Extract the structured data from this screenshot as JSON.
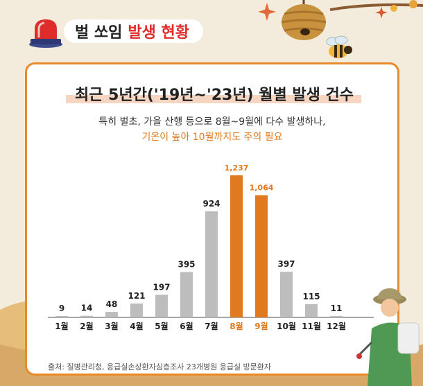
{
  "header": {
    "title": "벌 쏘임",
    "title_accent": "발생 현황"
  },
  "card": {
    "title": "최근 5년간('19년~'23년) 월별 발생 건수",
    "subtitle_line1": "특히  벌초, 가을 산행 등으로 8월~9월에 다수 발생하나,",
    "subtitle_line2": "기온이 높아 10월까지도 주의 필요",
    "source": "출처: 질병관리청, 응급실손상환자심층조사 23개병원 응급실 방문환자"
  },
  "colors": {
    "accent_orange": "#e07a1f",
    "bar_gray": "#bdbdbd",
    "header_red": "#e02b2b",
    "card_border": "#e98a2a"
  },
  "icons": [
    "siren-icon",
    "beehive-icon",
    "bee-icon",
    "hiker-illustration"
  ],
  "chart_data": {
    "type": "bar",
    "title": "최근 5년간('19년~'23년) 월별 발생 건수",
    "xlabel": "",
    "ylabel": "",
    "ylim": [
      0,
      1237
    ],
    "grid": false,
    "legend": "none",
    "categories": [
      "1월",
      "2월",
      "3월",
      "4월",
      "5월",
      "6월",
      "7월",
      "8월",
      "9월",
      "10월",
      "11월",
      "12월"
    ],
    "values": [
      9,
      14,
      48,
      121,
      197,
      395,
      924,
      1237,
      1064,
      397,
      115,
      11
    ],
    "value_labels": [
      "9",
      "14",
      "48",
      "121",
      "197",
      "395",
      "924",
      "1,237",
      "1,064",
      "397",
      "115",
      "11"
    ],
    "highlight": [
      false,
      false,
      false,
      false,
      false,
      false,
      false,
      true,
      true,
      false,
      false,
      false
    ]
  }
}
